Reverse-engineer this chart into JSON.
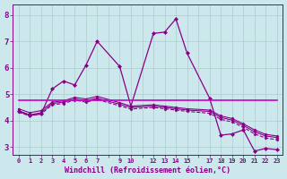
{
  "background_color": "#cce8ec",
  "line_color": "#880088",
  "grid_color": "#aacccc",
  "xlabel": "Windchill (Refroidissement éolien,°C)",
  "xlim": [
    -0.5,
    23.5
  ],
  "ylim": [
    2.7,
    8.4
  ],
  "yticks": [
    3,
    4,
    5,
    6,
    7,
    8
  ],
  "xtick_labels": [
    "0",
    "1",
    "2",
    "3",
    "4",
    "5",
    "6",
    "7",
    "",
    "9",
    "10",
    "",
    "12",
    "13",
    "14",
    "15",
    "",
    "17",
    "18",
    "19",
    "20",
    "21",
    "22",
    "23"
  ],
  "lines": [
    {
      "x": [
        0,
        1,
        2,
        3,
        4,
        5,
        6,
        7,
        9,
        10,
        12,
        13,
        14,
        15,
        17,
        18,
        19,
        20,
        21,
        22,
        23
      ],
      "y": [
        4.35,
        4.2,
        4.25,
        5.2,
        5.5,
        5.35,
        6.1,
        7.0,
        6.05,
        4.55,
        7.3,
        7.35,
        7.85,
        6.55,
        4.85,
        3.45,
        3.5,
        3.65,
        2.85,
        2.95,
        2.9
      ],
      "marker": "D",
      "markersize": 2.0,
      "linewidth": 0.9,
      "linestyle": "-"
    },
    {
      "x": [
        0,
        1,
        2,
        3,
        4,
        5,
        6,
        7,
        9,
        10,
        12,
        13,
        14,
        15,
        17,
        18,
        19,
        20,
        21,
        22,
        23
      ],
      "y": [
        4.45,
        4.3,
        4.38,
        4.7,
        4.75,
        4.88,
        4.82,
        4.92,
        4.68,
        4.55,
        4.6,
        4.55,
        4.5,
        4.45,
        4.4,
        4.18,
        4.08,
        3.88,
        3.65,
        3.48,
        3.42
      ],
      "marker": "D",
      "markersize": 1.5,
      "linewidth": 0.8,
      "linestyle": "-"
    },
    {
      "x": [
        0,
        1,
        2,
        3,
        4,
        5,
        6,
        7,
        9,
        10,
        12,
        13,
        14,
        15,
        17,
        18,
        19,
        20,
        21,
        22,
        23
      ],
      "y": [
        4.38,
        4.22,
        4.3,
        4.65,
        4.7,
        4.82,
        4.75,
        4.85,
        4.62,
        4.5,
        4.55,
        4.5,
        4.45,
        4.4,
        4.35,
        4.12,
        4.02,
        3.82,
        3.58,
        3.42,
        3.36
      ],
      "marker": "D",
      "markersize": 1.5,
      "linewidth": 0.8,
      "linestyle": "-"
    },
    {
      "x": [
        0,
        1,
        2,
        3,
        4,
        5,
        6,
        7,
        9,
        10,
        12,
        13,
        14,
        15,
        17,
        18,
        19,
        20,
        21,
        22,
        23
      ],
      "y": [
        4.32,
        4.18,
        4.25,
        4.6,
        4.65,
        4.78,
        4.7,
        4.8,
        4.56,
        4.44,
        4.5,
        4.45,
        4.4,
        4.35,
        4.28,
        4.05,
        3.95,
        3.75,
        3.5,
        3.34,
        3.28
      ],
      "marker": "D",
      "markersize": 1.5,
      "linewidth": 0.8,
      "linestyle": "--"
    },
    {
      "x": [
        0,
        23
      ],
      "y": [
        4.78,
        4.78
      ],
      "marker": null,
      "markersize": 0,
      "linewidth": 1.2,
      "linestyle": "-",
      "color": "#cc00cc"
    }
  ]
}
